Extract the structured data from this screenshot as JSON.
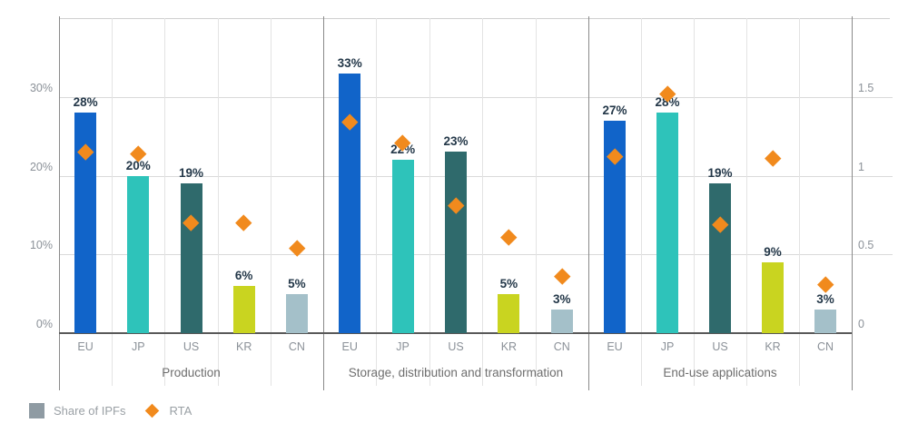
{
  "legend": {
    "share_label": "Share of IPFs",
    "rta_label": "RTA"
  },
  "colors": {
    "bar_eu": "#1164c9",
    "bar_jp": "#2ec3ba",
    "bar_us": "#2f6a6c",
    "bar_kr": "#c9d420",
    "bar_cn": "#a4c0c9",
    "rta_marker": "#f18a1d",
    "legend_square": "#8f9ba3",
    "bar_value_text": "#243849",
    "axis_text": "#8b9198"
  },
  "chart_data": {
    "type": "bar",
    "title": "",
    "grid": true,
    "legend_position": "bottom-left",
    "left_axis": {
      "label": "",
      "ticks": [
        "0%",
        "10%",
        "20%",
        "30%"
      ],
      "tick_values": [
        0,
        10,
        20,
        30
      ],
      "max": 40,
      "unit": "percent"
    },
    "right_axis": {
      "label": "",
      "ticks": [
        "0",
        "0.5",
        "1",
        "1.5"
      ],
      "tick_values": [
        0,
        0.5,
        1,
        1.5
      ],
      "max": 2.0,
      "unit": "RTA"
    },
    "categories": [
      "EU",
      "JP",
      "US",
      "KR",
      "CN"
    ],
    "panels": [
      {
        "label": "Production",
        "categories": [
          "EU",
          "JP",
          "US",
          "KR",
          "CN"
        ],
        "share_of_ipfs_pct": [
          28,
          20,
          19,
          6,
          5
        ],
        "bar_labels": [
          "28%",
          "20%",
          "19%",
          "6%",
          "5%"
        ],
        "rta": [
          1.15,
          1.14,
          0.7,
          0.7,
          0.54
        ]
      },
      {
        "label": "Storage, distribution and transformation",
        "categories": [
          "EU",
          "JP",
          "US",
          "KR",
          "CN"
        ],
        "share_of_ipfs_pct": [
          33,
          22,
          23,
          5,
          3
        ],
        "bar_labels": [
          "33%",
          "22%",
          "23%",
          "5%",
          "3%"
        ],
        "rta": [
          1.34,
          1.21,
          0.81,
          0.61,
          0.36
        ]
      },
      {
        "label": "End-use applications",
        "categories": [
          "EU",
          "JP",
          "US",
          "KR",
          "CN"
        ],
        "share_of_ipfs_pct": [
          27,
          28,
          19,
          9,
          3
        ],
        "bar_labels": [
          "27%",
          "28%",
          "19%",
          "9%",
          "3%"
        ],
        "rta": [
          1.12,
          1.52,
          0.69,
          1.11,
          0.31
        ]
      }
    ],
    "series": [
      {
        "name": "Share of IPFs",
        "axis": "left",
        "marker": "bar"
      },
      {
        "name": "RTA",
        "axis": "right",
        "marker": "diamond"
      }
    ]
  }
}
